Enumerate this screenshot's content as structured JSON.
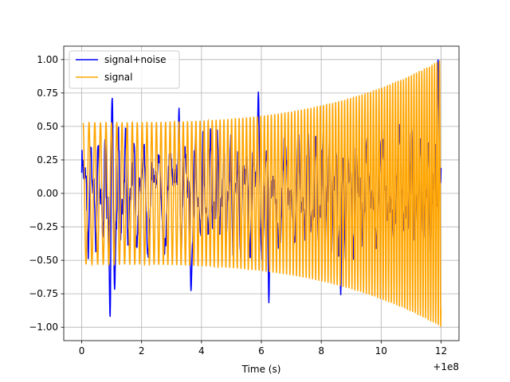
{
  "chart_data": {
    "type": "line",
    "title": "",
    "xlabel": "Time (s)",
    "ylabel": "",
    "x_offset_label": "+1e8",
    "xlim": [
      -0.6,
      12.6
    ],
    "ylim": [
      -1.1,
      1.1
    ],
    "x_ticks": [
      0,
      2,
      4,
      6,
      8,
      10,
      12
    ],
    "x_tick_labels": [
      "0",
      "2",
      "4",
      "6",
      "8",
      "10",
      "12"
    ],
    "y_ticks": [
      -1.0,
      -0.75,
      -0.5,
      -0.25,
      0.0,
      0.25,
      0.5,
      0.75,
      1.0
    ],
    "y_tick_labels": [
      "−1.00",
      "−0.75",
      "−0.50",
      "−0.25",
      "0.00",
      "0.25",
      "0.50",
      "0.75",
      "1.00"
    ],
    "grid": true,
    "legend_position": "top-left",
    "series": [
      {
        "name": "signal+noise",
        "color": "#0000ff",
        "x_start": 0,
        "x_end": 12,
        "typical_amplitude": 0.5,
        "peak_points": [
          {
            "x": 0.95,
            "y": -0.95
          },
          {
            "x": 1.02,
            "y": 0.72
          },
          {
            "x": 1.1,
            "y": -0.72
          },
          {
            "x": 3.25,
            "y": 0.64
          },
          {
            "x": 3.65,
            "y": -0.73
          },
          {
            "x": 5.9,
            "y": 0.76
          },
          {
            "x": 6.25,
            "y": -0.82
          },
          {
            "x": 8.65,
            "y": -0.76
          },
          {
            "x": 11.9,
            "y": 1.0
          }
        ]
      },
      {
        "name": "signal",
        "color": "#ffa500",
        "x_start": 0.05,
        "x_end": 12,
        "envelope_start": 0.53,
        "envelope_end": 1.0,
        "cycles_per_second_start": 5,
        "cycles_per_second_end": 12
      }
    ]
  }
}
